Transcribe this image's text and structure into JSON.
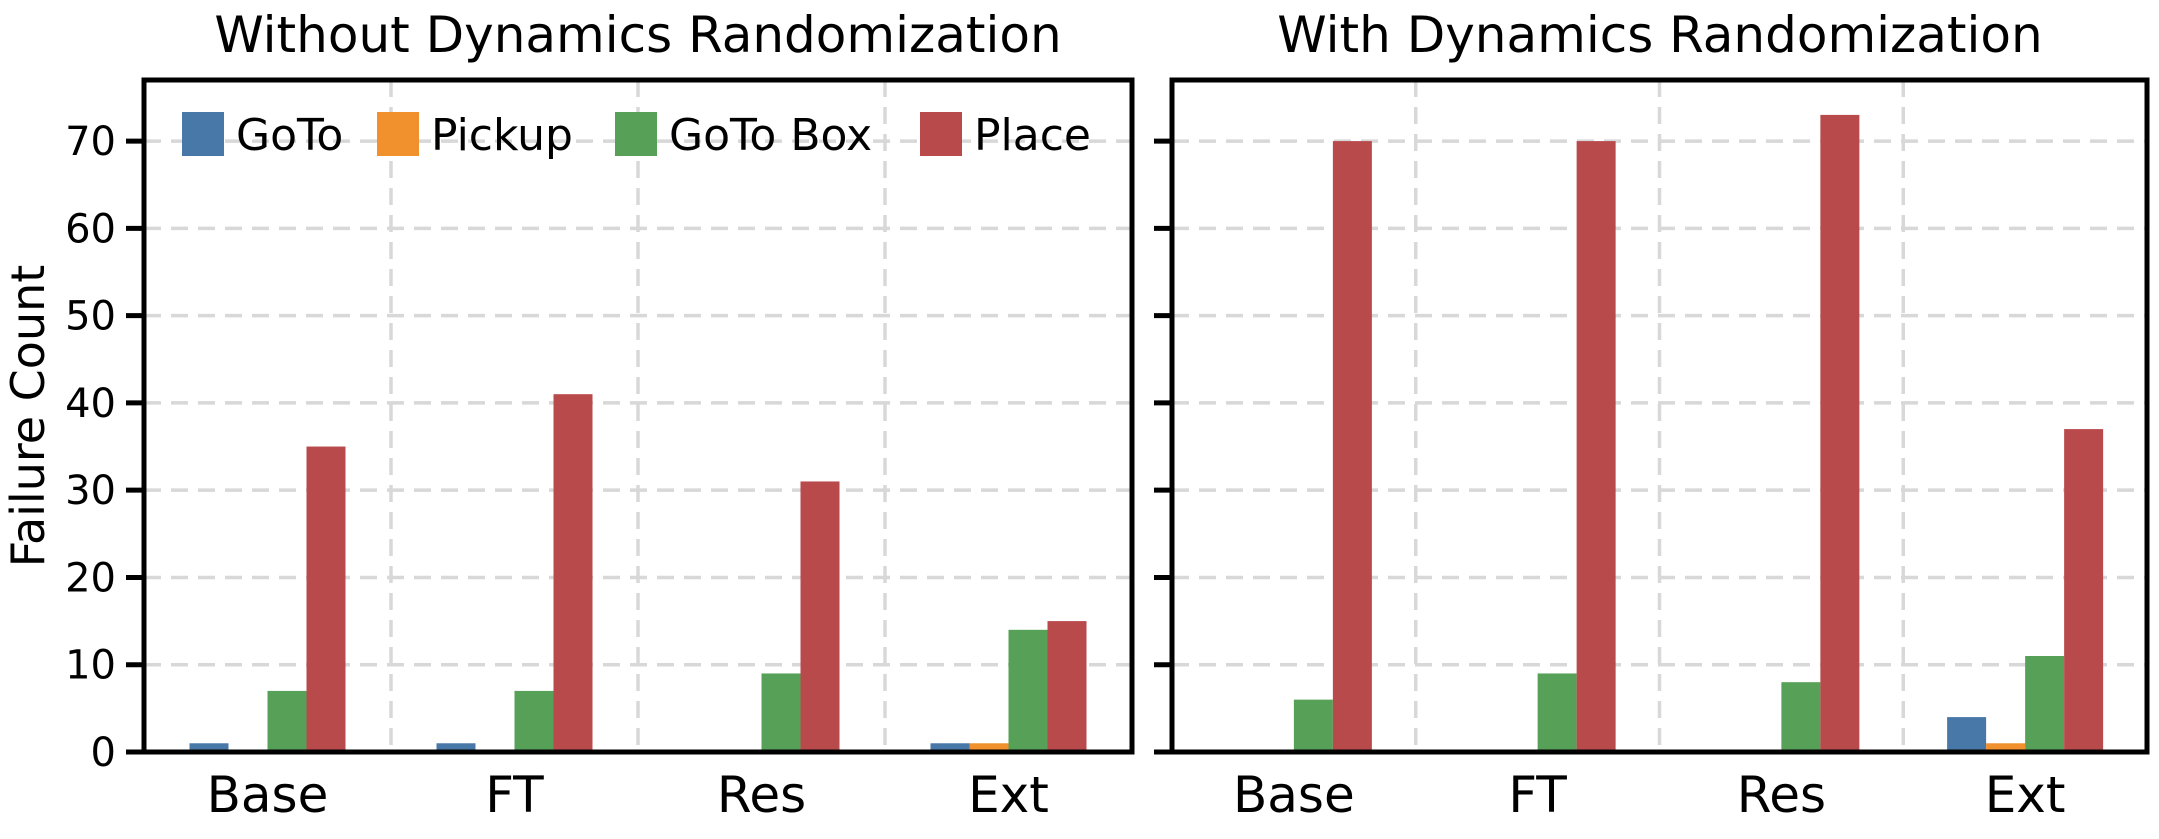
{
  "figure": {
    "background_color": "#ffffff",
    "text_color": "#000000",
    "grid_color": "#d8d8d8",
    "spine_color": "#000000"
  },
  "legend": {
    "position": "upper left of first panel",
    "items": [
      {
        "label": "GoTo",
        "color": "#4878A8"
      },
      {
        "label": "Pickup",
        "color": "#F0912D"
      },
      {
        "label": "GoTo Box",
        "color": "#57A057"
      },
      {
        "label": "Place",
        "color": "#B94A4C"
      }
    ]
  },
  "chart_data": [
    {
      "type": "bar",
      "title": "Without Dynamics Randomization",
      "ylabel": "Failure Count",
      "categories": [
        "Base",
        "FT",
        "Res",
        "Ext"
      ],
      "series": [
        {
          "name": "GoTo",
          "color": "#4878A8",
          "values": [
            1,
            1,
            0,
            1
          ]
        },
        {
          "name": "Pickup",
          "color": "#F0912D",
          "values": [
            0,
            0,
            0,
            1
          ]
        },
        {
          "name": "GoTo Box",
          "color": "#57A057",
          "values": [
            7,
            7,
            9,
            14
          ]
        },
        {
          "name": "Place",
          "color": "#B94A4C",
          "values": [
            35,
            41,
            31,
            15
          ]
        }
      ],
      "ylim": [
        0,
        77
      ],
      "yticks": [
        0,
        10,
        20,
        30,
        40,
        50,
        60,
        70
      ],
      "grid": true,
      "legend_position": "upper left",
      "show_ytick_labels": true
    },
    {
      "type": "bar",
      "title": "With Dynamics Randomization",
      "ylabel": "",
      "categories": [
        "Base",
        "FT",
        "Res",
        "Ext"
      ],
      "series": [
        {
          "name": "GoTo",
          "color": "#4878A8",
          "values": [
            0,
            0,
            0,
            4
          ]
        },
        {
          "name": "Pickup",
          "color": "#F0912D",
          "values": [
            0,
            0,
            0,
            1
          ]
        },
        {
          "name": "GoTo Box",
          "color": "#57A057",
          "values": [
            6,
            9,
            8,
            11
          ]
        },
        {
          "name": "Place",
          "color": "#B94A4C",
          "values": [
            70,
            70,
            73,
            37
          ]
        }
      ],
      "ylim": [
        0,
        77
      ],
      "yticks": [
        0,
        10,
        20,
        30,
        40,
        50,
        60,
        70
      ],
      "grid": true,
      "legend_position": "none",
      "show_ytick_labels": false
    }
  ]
}
